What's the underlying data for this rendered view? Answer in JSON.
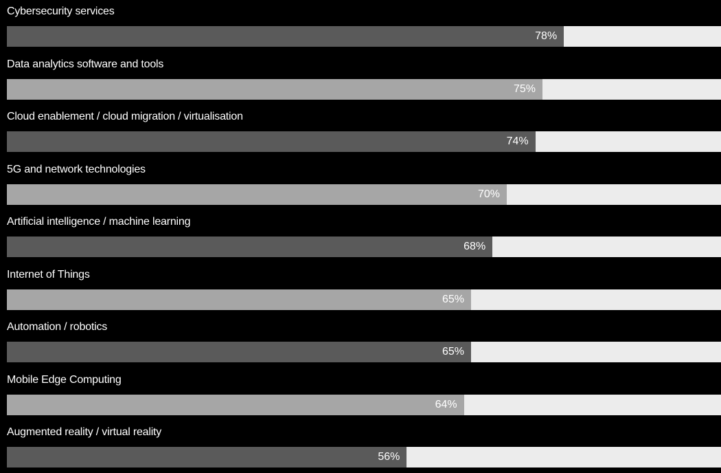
{
  "chart_data": {
    "type": "bar",
    "orientation": "horizontal",
    "categories": [
      "Cybersecurity services",
      "Data analytics software and tools",
      "Cloud enablement / cloud migration / virtualisation",
      "5G and network technologies",
      "Artificial intelligence / machine learning",
      "Internet of Things",
      "Automation / robotics",
      "Mobile Edge Computing",
      "Augmented reality / virtual reality"
    ],
    "values": [
      78,
      75,
      74,
      70,
      68,
      65,
      65,
      64,
      56
    ],
    "value_labels": [
      "78%",
      "75%",
      "74%",
      "70%",
      "68%",
      "65%",
      "65%",
      "64%",
      "56%"
    ],
    "xlim": [
      0,
      100
    ],
    "grid": false,
    "legend": "none"
  },
  "colors": {
    "background": "#000000",
    "track": "#ececec",
    "bar_dark": "#5a5a5a",
    "bar_light": "#a6a6a6",
    "text": "#ffffff"
  }
}
